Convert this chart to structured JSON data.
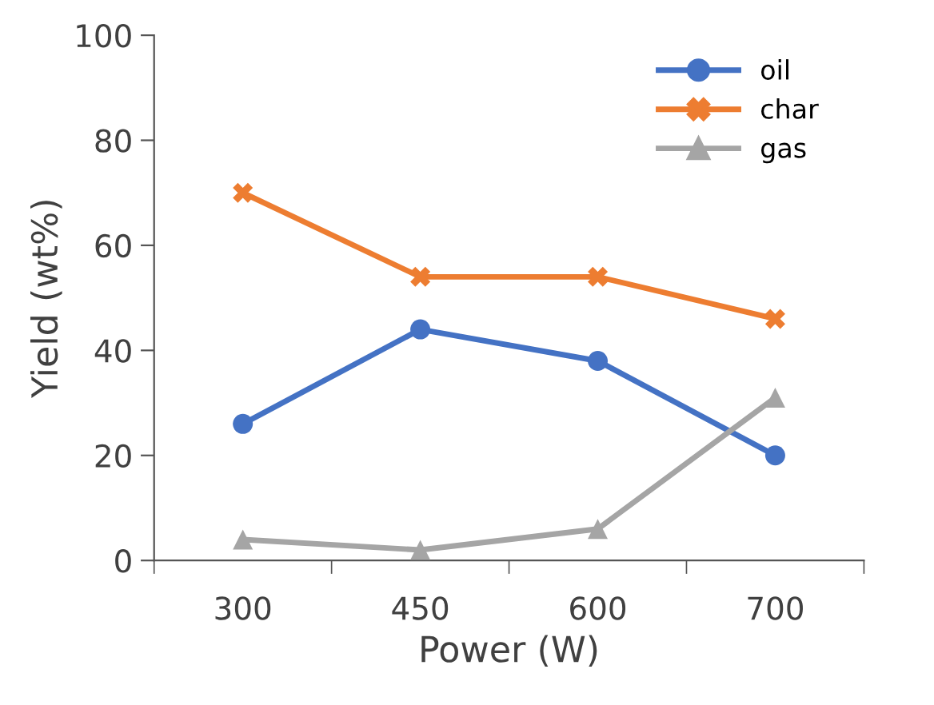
{
  "chart_data": {
    "type": "line",
    "xlabel": "Power (W)",
    "ylabel": "Yield (wt%)",
    "categories": [
      "300",
      "450",
      "600",
      "700"
    ],
    "series": [
      {
        "name": "oil",
        "color": "#4472c4",
        "marker": "circle",
        "values": [
          26,
          44,
          38,
          20
        ]
      },
      {
        "name": "char",
        "color": "#ed7d31",
        "marker": "cross",
        "values": [
          70,
          54,
          54,
          46
        ]
      },
      {
        "name": "gas",
        "color": "#a5a5a5",
        "marker": "triangle",
        "values": [
          4,
          2,
          6,
          31
        ]
      }
    ],
    "ylim": [
      0,
      100
    ],
    "yticks": [
      0,
      20,
      40,
      60,
      80,
      100
    ],
    "grid": false,
    "legend": "top right"
  }
}
